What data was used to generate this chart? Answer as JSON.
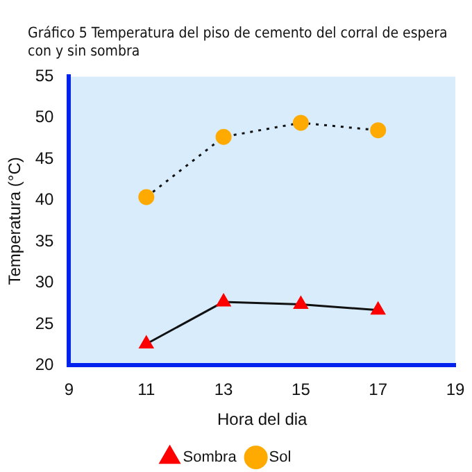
{
  "chart_data": {
    "type": "line",
    "title": "Gráfico 5 Temperatura del piso de cemento del corral de espera con y sin sombra",
    "xlabel": "Hora del dia",
    "ylabel": "Temperatura (°C)",
    "x": [
      11,
      13,
      15,
      17
    ],
    "series": [
      {
        "name": "Sombra",
        "color": "#ff0000",
        "values": [
          22.6,
          27.7,
          27.4,
          26.7
        ],
        "marker": "triangle",
        "line_style": "solid"
      },
      {
        "name": "Sol",
        "color": "#ffaa00",
        "values": [
          40.4,
          47.7,
          49.4,
          48.5
        ],
        "marker": "circle",
        "line_style": "dotted"
      }
    ],
    "xlim": [
      9,
      19
    ],
    "xticks": [
      9,
      11,
      13,
      15,
      17,
      19
    ],
    "ylim": [
      20,
      55
    ],
    "yticks": [
      20,
      25,
      30,
      35,
      40,
      45,
      50,
      55
    ],
    "grid": false,
    "legend": "bottom"
  }
}
